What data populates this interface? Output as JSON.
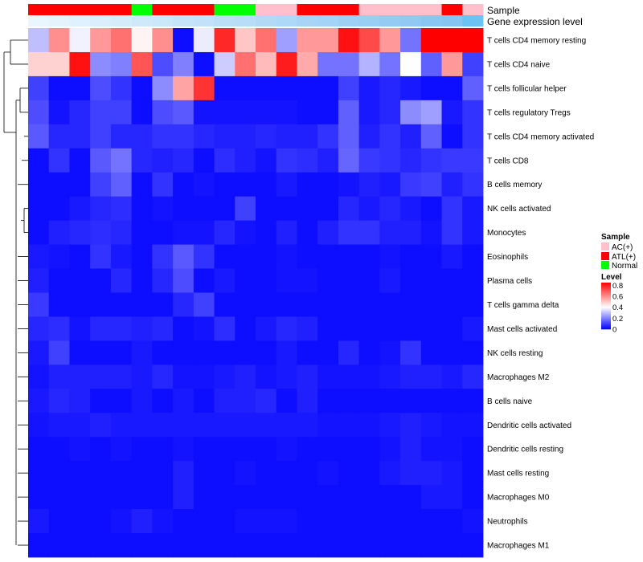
{
  "chart_data": {
    "type": "heatmap",
    "annotation_labels": {
      "sample": "Sample",
      "expression": "Gene expression level"
    },
    "sample_groups": [
      "ATL(+)",
      "ATL(+)",
      "ATL(+)",
      "ATL(+)",
      "ATL(+)",
      "Normal",
      "ATL(+)",
      "ATL(+)",
      "ATL(+)",
      "Normal",
      "Normal",
      "AC(+)",
      "AC(+)",
      "ATL(+)",
      "ATL(+)",
      "ATL(+)",
      "AC(+)",
      "AC(+)",
      "AC(+)",
      "AC(+)",
      "ATL(+)",
      "AC(+)"
    ],
    "expression_gradient": [
      "#e9f6fd",
      "#e4f3fc",
      "#dff1fc",
      "#daeefb",
      "#d5ecfb",
      "#d0e9fa",
      "#cbe7fa",
      "#c6e4f9",
      "#c1e2f9",
      "#bcdff8",
      "#b7ddf8",
      "#b2daf7",
      "#add8f7",
      "#a8d5f6",
      "#a3d3f6",
      "#9ed0f5",
      "#99cef5",
      "#94cbf4",
      "#8fc9f4",
      "#8ac6f3",
      "#85c4f3",
      "#6cc3f3"
    ],
    "rows": [
      "T cells CD4 memory resting",
      "T cells CD4 naive",
      "T cells follicular helper",
      "T cells regulatory  Tregs",
      "T cells CD4 memory activated",
      "T cells CD8",
      "B cells memory",
      "NK cells activated",
      "Monocytes",
      "Eosinophils",
      "Plasma cells",
      "T cells gamma delta",
      "Mast cells activated",
      "NK cells resting",
      "Macrophages M2",
      "B cells naive",
      "Dendritic cells activated",
      "Dendritic cells resting",
      "Mast cells resting",
      "Macrophages M0",
      "Neutrophils",
      "Macrophages M1"
    ],
    "values": [
      [
        0.3,
        0.6,
        0.38,
        0.58,
        0.65,
        0.42,
        0.6,
        0.02,
        0.37,
        0.78,
        0.5,
        0.65,
        0.25,
        0.58,
        0.58,
        0.82,
        0.72,
        0.58,
        0.18,
        0.85,
        0.85,
        0.85
      ],
      [
        0.48,
        0.48,
        0.82,
        0.22,
        0.2,
        0.7,
        0.12,
        0.2,
        0.02,
        0.32,
        0.65,
        0.52,
        0.8,
        0.55,
        0.18,
        0.18,
        0.28,
        0.18,
        0.4,
        0.15,
        0.58,
        0.1
      ],
      [
        0.1,
        0.02,
        0.02,
        0.12,
        0.08,
        0.02,
        0.22,
        0.56,
        0.76,
        0.02,
        0.02,
        0.02,
        0.02,
        0.02,
        0.02,
        0.1,
        0.04,
        0.06,
        0.04,
        0.02,
        0.02,
        0.15
      ],
      [
        0.12,
        0.03,
        0.06,
        0.1,
        0.1,
        0.02,
        0.12,
        0.14,
        0.03,
        0.03,
        0.03,
        0.03,
        0.03,
        0.02,
        0.02,
        0.15,
        0.04,
        0.06,
        0.22,
        0.25,
        0.04,
        0.08
      ],
      [
        0.14,
        0.06,
        0.06,
        0.1,
        0.06,
        0.06,
        0.08,
        0.08,
        0.06,
        0.05,
        0.05,
        0.06,
        0.05,
        0.05,
        0.08,
        0.15,
        0.05,
        0.08,
        0.05,
        0.15,
        0.02,
        0.08
      ],
      [
        0.02,
        0.08,
        0.02,
        0.14,
        0.18,
        0.06,
        0.05,
        0.06,
        0.02,
        0.07,
        0.05,
        0.03,
        0.08,
        0.07,
        0.05,
        0.16,
        0.09,
        0.08,
        0.06,
        0.08,
        0.09,
        0.09
      ],
      [
        0.02,
        0.02,
        0.02,
        0.1,
        0.15,
        0.02,
        0.08,
        0.02,
        0.03,
        0.02,
        0.02,
        0.02,
        0.04,
        0.02,
        0.02,
        0.03,
        0.05,
        0.04,
        0.09,
        0.1,
        0.05,
        0.08
      ],
      [
        0.02,
        0.02,
        0.04,
        0.06,
        0.07,
        0.02,
        0.03,
        0.02,
        0.02,
        0.02,
        0.1,
        0.02,
        0.02,
        0.02,
        0.02,
        0.06,
        0.04,
        0.06,
        0.04,
        0.02,
        0.08,
        0.04
      ],
      [
        0.02,
        0.05,
        0.06,
        0.07,
        0.06,
        0.02,
        0.02,
        0.03,
        0.03,
        0.06,
        0.03,
        0.02,
        0.05,
        0.02,
        0.05,
        0.08,
        0.08,
        0.05,
        0.05,
        0.03,
        0.08,
        0.04
      ],
      [
        0.04,
        0.03,
        0.02,
        0.08,
        0.04,
        0.02,
        0.08,
        0.14,
        0.08,
        0.02,
        0.02,
        0.02,
        0.03,
        0.02,
        0.02,
        0.02,
        0.02,
        0.03,
        0.02,
        0.02,
        0.04,
        0.02
      ],
      [
        0.05,
        0.02,
        0.02,
        0.02,
        0.06,
        0.02,
        0.06,
        0.12,
        0.02,
        0.04,
        0.02,
        0.02,
        0.03,
        0.03,
        0.02,
        0.02,
        0.02,
        0.04,
        0.02,
        0.02,
        0.02,
        0.02
      ],
      [
        0.09,
        0.02,
        0.02,
        0.02,
        0.02,
        0.02,
        0.02,
        0.06,
        0.1,
        0.02,
        0.02,
        0.02,
        0.02,
        0.02,
        0.02,
        0.02,
        0.02,
        0.02,
        0.02,
        0.02,
        0.02,
        0.02
      ],
      [
        0.06,
        0.07,
        0.03,
        0.06,
        0.06,
        0.05,
        0.06,
        0.02,
        0.03,
        0.07,
        0.02,
        0.04,
        0.06,
        0.05,
        0.02,
        0.02,
        0.02,
        0.02,
        0.02,
        0.02,
        0.02,
        0.04
      ],
      [
        0.04,
        0.1,
        0.02,
        0.02,
        0.02,
        0.04,
        0.02,
        0.02,
        0.02,
        0.02,
        0.02,
        0.02,
        0.04,
        0.02,
        0.02,
        0.06,
        0.02,
        0.03,
        0.08,
        0.02,
        0.02,
        0.02
      ],
      [
        0.03,
        0.05,
        0.05,
        0.05,
        0.05,
        0.04,
        0.06,
        0.03,
        0.03,
        0.04,
        0.05,
        0.03,
        0.04,
        0.05,
        0.03,
        0.03,
        0.03,
        0.04,
        0.05,
        0.05,
        0.04,
        0.06
      ],
      [
        0.04,
        0.06,
        0.05,
        0.02,
        0.02,
        0.04,
        0.02,
        0.04,
        0.02,
        0.05,
        0.05,
        0.06,
        0.02,
        0.05,
        0.02,
        0.02,
        0.02,
        0.02,
        0.02,
        0.02,
        0.02,
        0.02
      ],
      [
        0.03,
        0.04,
        0.04,
        0.05,
        0.04,
        0.04,
        0.04,
        0.04,
        0.04,
        0.04,
        0.04,
        0.04,
        0.04,
        0.04,
        0.03,
        0.03,
        0.03,
        0.04,
        0.05,
        0.04,
        0.03,
        0.03
      ],
      [
        0.02,
        0.02,
        0.03,
        0.02,
        0.03,
        0.02,
        0.02,
        0.03,
        0.02,
        0.02,
        0.02,
        0.02,
        0.03,
        0.02,
        0.02,
        0.02,
        0.02,
        0.03,
        0.05,
        0.03,
        0.03,
        0.02
      ],
      [
        0.02,
        0.02,
        0.02,
        0.02,
        0.02,
        0.02,
        0.02,
        0.05,
        0.02,
        0.02,
        0.03,
        0.02,
        0.02,
        0.02,
        0.03,
        0.02,
        0.02,
        0.04,
        0.05,
        0.05,
        0.04,
        0.02
      ],
      [
        0.02,
        0.02,
        0.02,
        0.02,
        0.02,
        0.02,
        0.02,
        0.05,
        0.02,
        0.02,
        0.02,
        0.02,
        0.02,
        0.02,
        0.02,
        0.02,
        0.02,
        0.02,
        0.02,
        0.04,
        0.04,
        0.02
      ],
      [
        0.04,
        0.02,
        0.02,
        0.02,
        0.03,
        0.05,
        0.03,
        0.02,
        0.02,
        0.02,
        0.03,
        0.03,
        0.03,
        0.02,
        0.02,
        0.02,
        0.02,
        0.02,
        0.02,
        0.02,
        0.02,
        0.03
      ],
      [
        0.02,
        0.02,
        0.02,
        0.02,
        0.02,
        0.02,
        0.02,
        0.02,
        0.02,
        0.02,
        0.02,
        0.02,
        0.02,
        0.02,
        0.02,
        0.02,
        0.02,
        0.02,
        0.02,
        0.02,
        0.02,
        0.02
      ]
    ],
    "legend_sample": {
      "title": "Sample",
      "items": [
        {
          "label": "AC(+)",
          "color": "#ffc0cb"
        },
        {
          "label": "ATL(+)",
          "color": "#ff0000"
        },
        {
          "label": "Normal",
          "color": "#00ff00"
        }
      ]
    },
    "legend_level": {
      "title": "Level",
      "ticks": [
        0.8,
        0.6,
        0.4,
        0.2,
        0
      ],
      "tick_labels": [
        "0.8",
        "0.6",
        "0.4",
        "0.2",
        "0"
      ],
      "range": [
        0,
        0.85
      ]
    },
    "colors": {
      "low": "#0000ff",
      "mid": "#ffffff",
      "high": "#ff0000",
      "midpoint": 0.4
    }
  }
}
